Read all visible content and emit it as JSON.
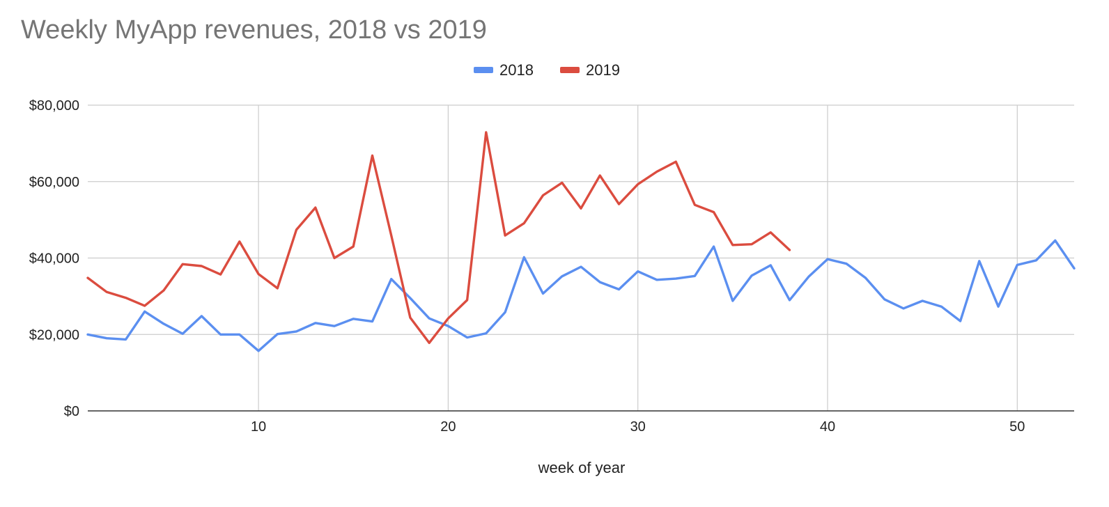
{
  "chart_data": {
    "type": "line",
    "title": "Weekly MyApp revenues, 2018 vs 2019",
    "xlabel": "week of year",
    "ylabel": "",
    "xlim": [
      1,
      53
    ],
    "ylim": [
      0,
      80000
    ],
    "x_ticks": [
      10,
      20,
      30,
      40,
      50
    ],
    "y_ticks": [
      0,
      20000,
      40000,
      60000,
      80000
    ],
    "y_tick_labels": [
      "$0",
      "$20,000",
      "$40,000",
      "$60,000",
      "$80,000"
    ],
    "grid": true,
    "legend_position": "top",
    "series": [
      {
        "name": "2018",
        "color": "#5b8ff0",
        "x": [
          1,
          2,
          3,
          4,
          5,
          6,
          7,
          8,
          9,
          10,
          11,
          12,
          13,
          14,
          15,
          16,
          17,
          18,
          19,
          20,
          21,
          22,
          23,
          24,
          25,
          26,
          27,
          28,
          29,
          30,
          31,
          32,
          33,
          34,
          35,
          36,
          37,
          38,
          39,
          40,
          41,
          42,
          43,
          44,
          45,
          46,
          47,
          48,
          49,
          50,
          51,
          52,
          53
        ],
        "values": [
          20000,
          19000,
          18700,
          26000,
          22800,
          20200,
          24800,
          20000,
          20000,
          15700,
          20100,
          20800,
          23000,
          22200,
          24100,
          23400,
          34500,
          29500,
          24200,
          22200,
          19200,
          20300,
          25800,
          40200,
          30700,
          35200,
          37700,
          33700,
          31800,
          36500,
          34300,
          34600,
          35300,
          43000,
          28800,
          35400,
          38100,
          29000,
          35100,
          39700,
          38500,
          34800,
          29200,
          26800,
          28800,
          27300,
          23500,
          39200,
          27300,
          38200,
          39400,
          44600,
          37300
        ]
      },
      {
        "name": "2019",
        "color": "#db4c3f",
        "x": [
          1,
          2,
          3,
          4,
          5,
          6,
          7,
          8,
          9,
          10,
          11,
          12,
          13,
          14,
          15,
          16,
          17,
          18,
          19,
          20,
          21,
          22,
          23,
          24,
          25,
          26,
          27,
          28,
          29,
          30,
          31,
          32,
          33,
          34,
          35,
          36,
          37,
          38
        ],
        "values": [
          34800,
          31100,
          29600,
          27500,
          31500,
          38400,
          37900,
          35700,
          44300,
          35800,
          32100,
          47400,
          53200,
          40000,
          43000,
          66800,
          45900,
          24400,
          17800,
          24200,
          29000,
          72900,
          45900,
          49100,
          56400,
          59700,
          53000,
          61600,
          54100,
          59300,
          62600,
          65200,
          53900,
          52000,
          43400,
          43600,
          46700,
          42100
        ]
      }
    ]
  }
}
